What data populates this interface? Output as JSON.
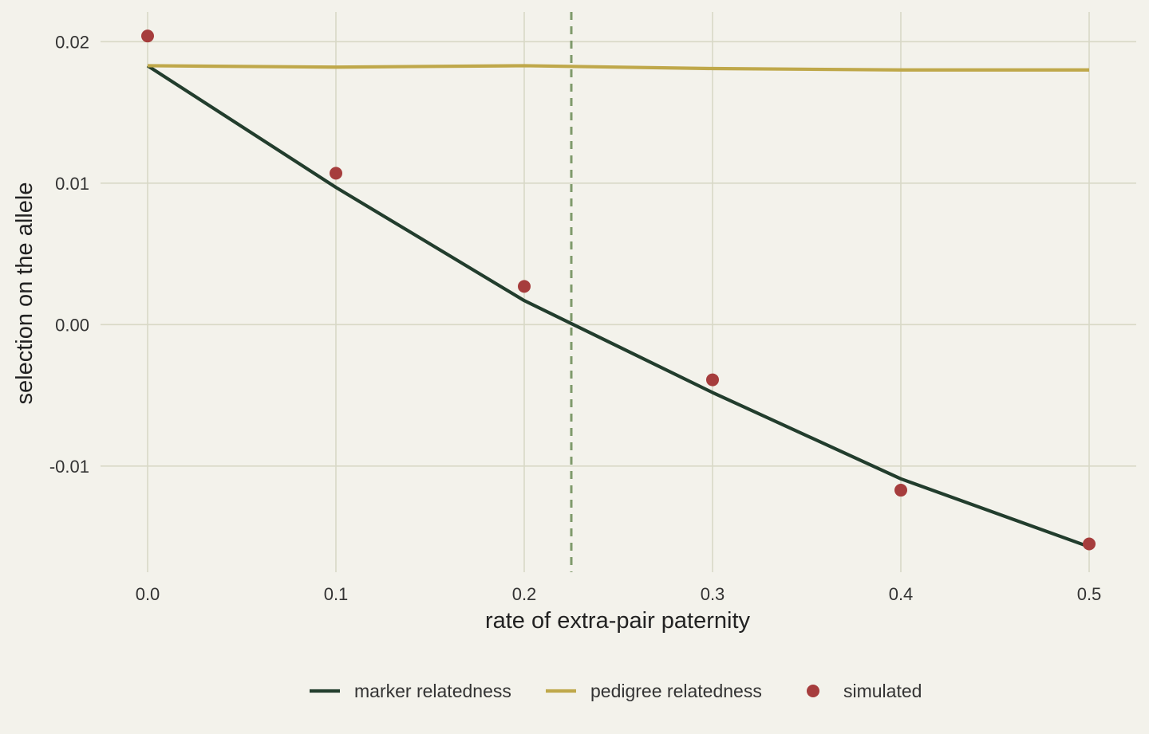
{
  "chart_data": {
    "type": "line",
    "title": "",
    "xlabel": "rate of extra-pair paternity",
    "ylabel": "selection on the allele",
    "xlim": [
      -0.025,
      0.525
    ],
    "ylim": [
      -0.0175,
      0.0221
    ],
    "x_ticks": [
      0.0,
      0.1,
      0.2,
      0.3,
      0.4,
      0.5
    ],
    "x_tick_labels": [
      "0.0",
      "0.1",
      "0.2",
      "0.3",
      "0.4",
      "0.5"
    ],
    "y_ticks": [
      0.02,
      0.01,
      0.0,
      -0.01
    ],
    "y_tick_labels": [
      "0.02",
      "0.01",
      "0.00",
      "-0.01"
    ],
    "grid": true,
    "legend_position": "bottom",
    "background_color": "#f3f2eb",
    "grid_color": "#d8d8c6",
    "vline": {
      "x": 0.225,
      "style": "dashed",
      "color": "#7f9a6b"
    },
    "series": [
      {
        "name": "marker relatedness",
        "type": "line",
        "color": "#223d2d",
        "x": [
          0.0,
          0.1,
          0.2,
          0.3,
          0.4,
          0.5
        ],
        "y": [
          0.0183,
          0.0097,
          0.0017,
          -0.0048,
          -0.0109,
          -0.0157
        ]
      },
      {
        "name": "pedigree relatedness",
        "type": "line",
        "color": "#bfa84a",
        "x": [
          0.0,
          0.1,
          0.2,
          0.3,
          0.4,
          0.5
        ],
        "y": [
          0.0183,
          0.0182,
          0.0183,
          0.0181,
          0.018,
          0.018
        ]
      },
      {
        "name": "simulated",
        "type": "scatter",
        "color": "#a63d3d",
        "x": [
          0.0,
          0.1,
          0.2,
          0.3,
          0.4,
          0.5
        ],
        "y": [
          0.0204,
          0.0107,
          0.0027,
          -0.0039,
          -0.0117,
          -0.0155
        ]
      }
    ]
  }
}
